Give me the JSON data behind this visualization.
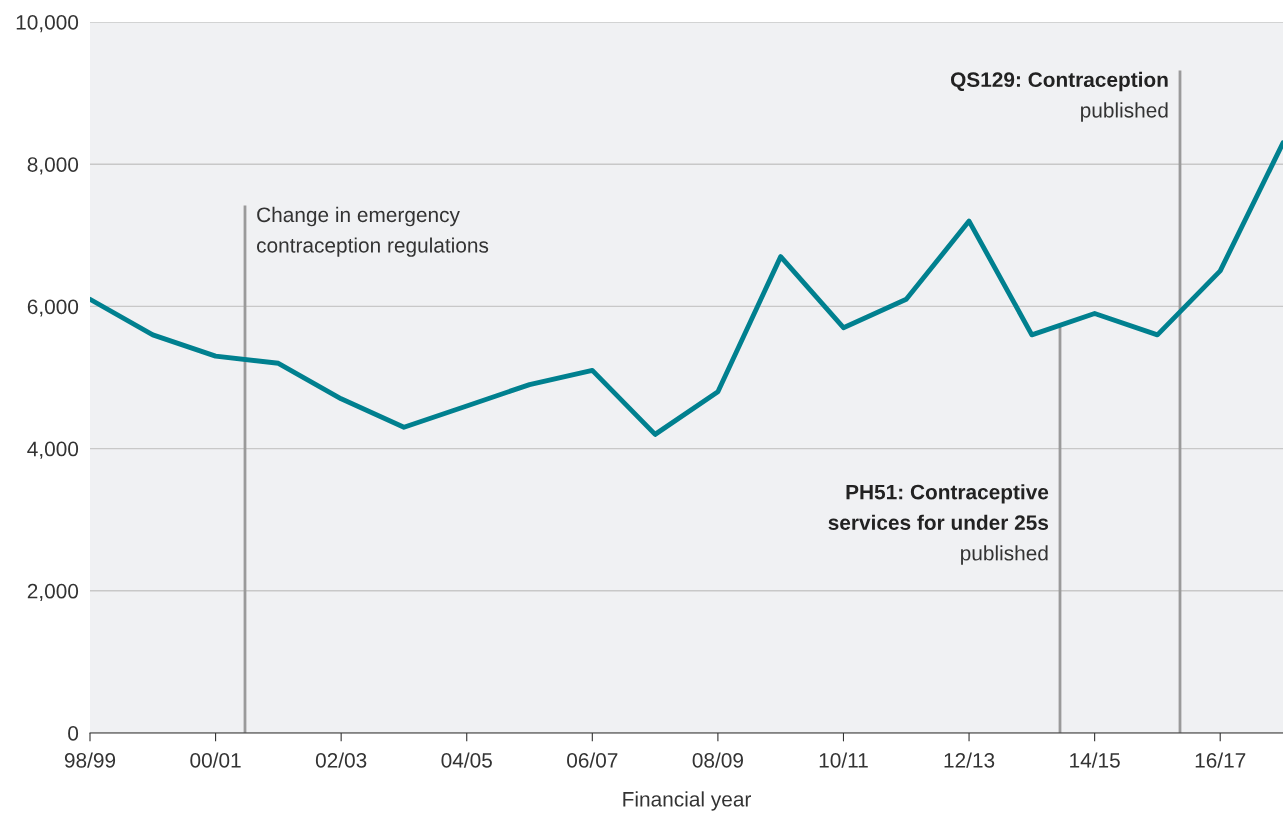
{
  "chart_data": {
    "type": "line",
    "xlabel": "Financial year",
    "categories": [
      "98/99",
      null,
      "00/01",
      null,
      "02/03",
      null,
      "04/05",
      null,
      "06/07",
      null,
      "08/09",
      null,
      "10/11",
      null,
      "12/13",
      null,
      "14/15",
      null,
      "16/17",
      null
    ],
    "series": [
      {
        "color": "#00808f",
        "values": [
          6100,
          5600,
          5300,
          5200,
          4700,
          4300,
          4600,
          4900,
          5100,
          4200,
          4800,
          6700,
          5700,
          6100,
          7200,
          5600,
          5900,
          5600,
          6500,
          8300
        ]
      }
    ],
    "ylim": [
      0,
      10000
    ],
    "yticks": [
      {
        "value": 0,
        "label": "0"
      },
      {
        "value": 2000,
        "label": "2,000"
      },
      {
        "value": 4000,
        "label": "4,000"
      },
      {
        "value": 6000,
        "label": "6,000"
      },
      {
        "value": 8000,
        "label": "8,000"
      },
      {
        "value": 10000,
        "label": "10,000"
      }
    ],
    "grid": "y",
    "marker": "none",
    "line_style": "solid",
    "annotations": [
      "Change in emergency\ncontraception regulations",
      "PH51: Contraceptive\nservices for under 25s\npublished",
      "QS129: Contraception\npublished"
    ]
  }
}
